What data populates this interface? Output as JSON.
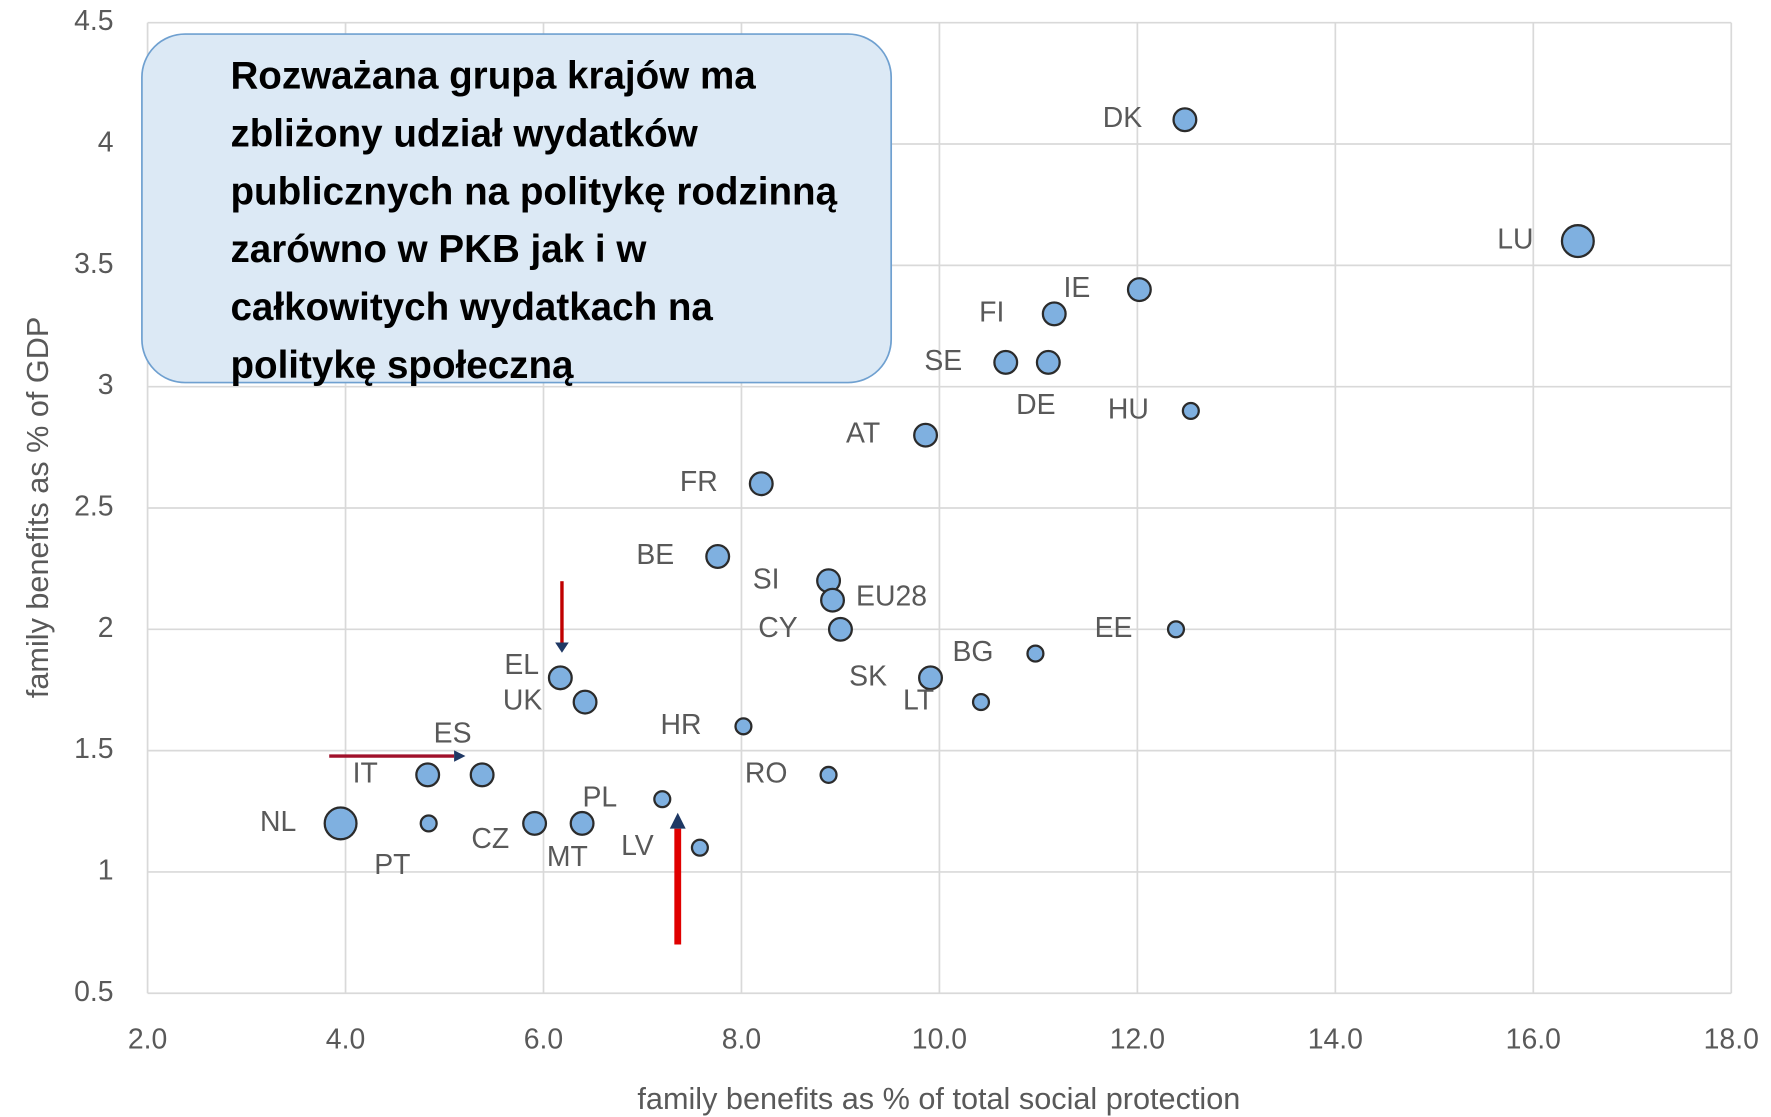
{
  "chart_data": {
    "type": "scatter",
    "x_label": "family benefits as % of total social protection",
    "y_label": "family benefits as % of GDP",
    "annotation": [
      "Rozważana grupa krajów ma",
      "zbliżony udział wydatków",
      "publicznych na politykę rodzinną",
      "zarówno w PKB  jak i w",
      "całkowitych wydatkach  na",
      "politykę społeczną"
    ],
    "xlim": [
      2.0,
      18.0
    ],
    "xticks": [
      {
        "value": 2,
        "label": "2.0"
      },
      {
        "value": 4,
        "label": "4.0"
      },
      {
        "value": 6,
        "label": "6.0"
      },
      {
        "value": 8,
        "label": "8.0"
      },
      {
        "value": 10,
        "label": "10.0"
      },
      {
        "value": 12,
        "label": "12.0"
      },
      {
        "value": 14,
        "label": "14.0"
      },
      {
        "value": 16,
        "label": "16.0"
      },
      {
        "value": 18,
        "label": "18.0"
      }
    ],
    "ylim": [
      0.5,
      4.5
    ],
    "yticks": [
      0.5,
      1,
      1.5,
      2,
      2.5,
      3,
      3.5,
      4,
      4.5
    ],
    "grid": true,
    "color": "#7fb0e0",
    "series": [
      {
        "labels": [
          "DK",
          "LU",
          "IE",
          "FI",
          "SE",
          "DE",
          "HU",
          "AT",
          "FR",
          "BE",
          "SI",
          "EU28",
          "CY",
          "EE",
          "BG",
          "SK",
          "LT",
          "EL",
          "UK",
          "HR",
          "ES",
          "IT",
          "RO",
          "PL",
          "NL",
          "PT",
          "CZ",
          "MT",
          "LV"
        ],
        "x": [
          12.48,
          16.45,
          12.02,
          11.16,
          10.67,
          11.1,
          12.54,
          9.86,
          8.2,
          7.76,
          8.88,
          8.92,
          9.0,
          12.39,
          10.97,
          9.91,
          10.42,
          6.17,
          6.42,
          8.02,
          5.38,
          4.83,
          8.88,
          7.2,
          3.95,
          4.84,
          5.91,
          6.39,
          7.58
        ],
        "values": [
          4.1,
          3.6,
          3.4,
          3.3,
          3.1,
          3.1,
          2.9,
          2.8,
          2.6,
          2.3,
          2.2,
          2.12,
          2.0,
          2.0,
          1.9,
          1.8,
          1.7,
          1.8,
          1.7,
          1.6,
          1.4,
          1.4,
          1.4,
          1.3,
          1.2,
          1.2,
          1.2,
          1.2,
          1.1
        ],
        "sizes": [
          2,
          3,
          2,
          2,
          2,
          2,
          1,
          2,
          2,
          2,
          2,
          2,
          2,
          1,
          1,
          2,
          1,
          2,
          2,
          1,
          2,
          2,
          1,
          1,
          3,
          1,
          2,
          2,
          1
        ]
      }
    ]
  }
}
